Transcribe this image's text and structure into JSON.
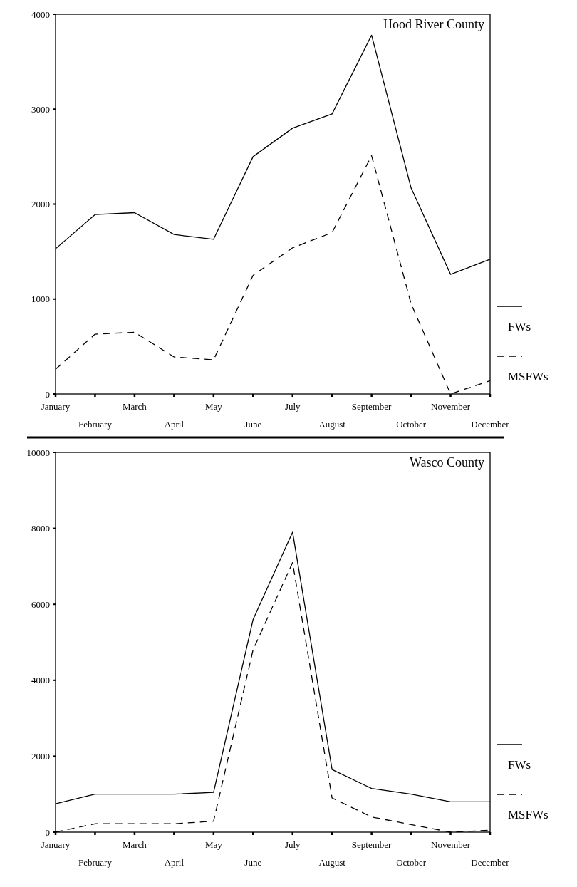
{
  "chart_data": [
    {
      "type": "line",
      "title": "Hood River County",
      "categories": [
        "January",
        "February",
        "March",
        "April",
        "May",
        "June",
        "July",
        "August",
        "September",
        "October",
        "November",
        "December"
      ],
      "series": [
        {
          "name": "FWs",
          "color": "#000000",
          "line_style": "solid",
          "values": [
            1530,
            1890,
            1910,
            1680,
            1630,
            2500,
            2800,
            2950,
            3780,
            2170,
            1260,
            1420
          ]
        },
        {
          "name": "MSFWs",
          "color": "#000000",
          "line_style": "dashed",
          "values": [
            260,
            630,
            650,
            390,
            360,
            1250,
            1540,
            1700,
            2510,
            950,
            0,
            140
          ]
        }
      ],
      "ylim": [
        0,
        4000
      ],
      "yticks": [
        0,
        1000,
        2000,
        3000,
        4000
      ],
      "grid": false,
      "legend": "right",
      "marker": "none"
    },
    {
      "type": "line",
      "title": "Wasco County",
      "categories": [
        "January",
        "February",
        "March",
        "April",
        "May",
        "June",
        "July",
        "August",
        "September",
        "October",
        "November",
        "December"
      ],
      "series": [
        {
          "name": "FWs",
          "color": "#000000",
          "line_style": "solid",
          "values": [
            750,
            1000,
            1000,
            1000,
            1050,
            5600,
            7900,
            1650,
            1150,
            1000,
            800,
            800
          ]
        },
        {
          "name": "MSFWs",
          "color": "#000000",
          "line_style": "dashed",
          "values": [
            0,
            220,
            220,
            220,
            290,
            4800,
            7100,
            900,
            400,
            200,
            0,
            50
          ]
        }
      ],
      "ylim": [
        0,
        10000
      ],
      "yticks": [
        0,
        2000,
        4000,
        6000,
        8000,
        10000
      ],
      "grid": false,
      "legend": "right",
      "marker": "none"
    }
  ]
}
